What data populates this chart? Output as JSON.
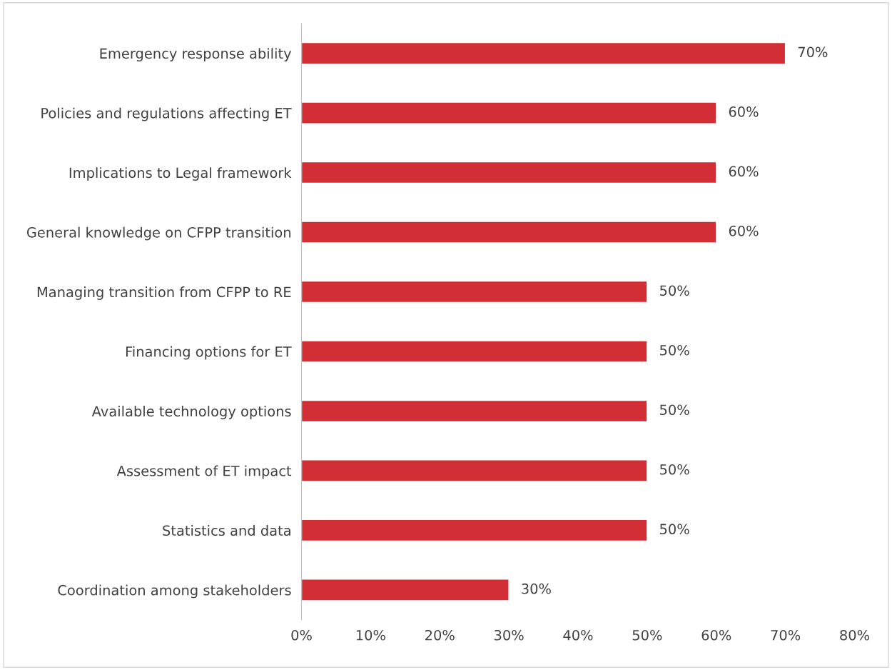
{
  "chart_data": {
    "type": "bar",
    "orientation": "horizontal",
    "categories": [
      "Emergency response ability",
      "Policies and regulations affecting ET",
      "Implications to Legal framework",
      "General knowledge on CFPP transition",
      "Managing transition from CFPP to RE",
      "Financing options for ET",
      "Available technology options",
      "Assessment of ET impact",
      "Statistics and data",
      "Coordination among stakeholders"
    ],
    "values": [
      70,
      60,
      60,
      60,
      50,
      50,
      50,
      50,
      50,
      30
    ],
    "value_labels": [
      "70%",
      "60%",
      "60%",
      "60%",
      "50%",
      "50%",
      "50%",
      "50%",
      "50%",
      "30%"
    ],
    "color": "#d12e36",
    "xlim": [
      0,
      80
    ],
    "xticks": [
      {
        "value": 0,
        "label": "0%"
      },
      {
        "value": 10,
        "label": "10%"
      },
      {
        "value": 20,
        "label": "20%"
      },
      {
        "value": 30,
        "label": "30%"
      },
      {
        "value": 40,
        "label": "40%"
      },
      {
        "value": 50,
        "label": "50%"
      },
      {
        "value": 60,
        "label": "60%"
      },
      {
        "value": 70,
        "label": "70%"
      },
      {
        "value": 80,
        "label": "80%"
      }
    ],
    "grid": false,
    "legend": false
  }
}
